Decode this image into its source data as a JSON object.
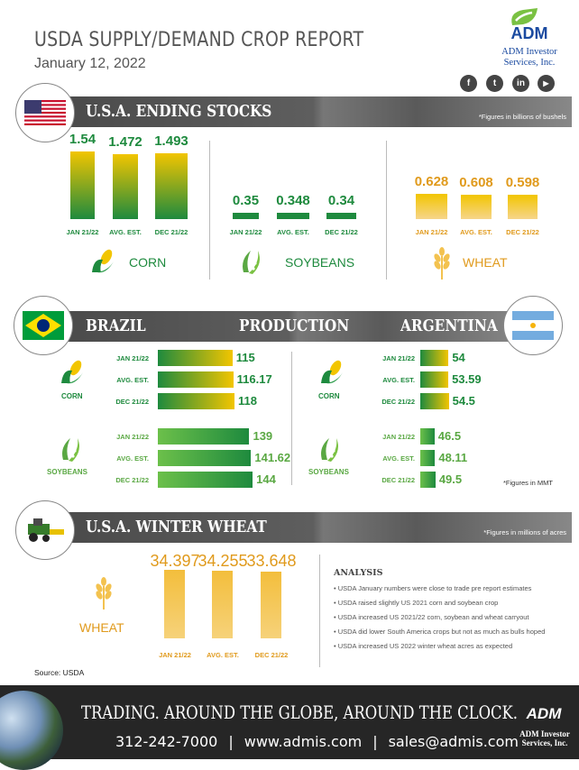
{
  "header": {
    "title": "USDA SUPPLY/DEMAND CROP REPORT",
    "date": "January 12, 2022",
    "brand": {
      "name": "ADM",
      "line1": "ADM Investor",
      "line2": "Services, Inc."
    },
    "social": [
      {
        "icon": "facebook-icon",
        "glyph": "f"
      },
      {
        "icon": "twitter-icon",
        "glyph": "t"
      },
      {
        "icon": "linkedin-icon",
        "glyph": "in"
      },
      {
        "icon": "youtube-icon",
        "glyph": "▶"
      }
    ]
  },
  "colors": {
    "green": "#1e8a3e",
    "yellow": "#f2c500",
    "orange": "#e09a1c",
    "wheat_bar": "#f3c24f"
  },
  "ending_stocks": {
    "title": "U.S.A. ENDING STOCKS",
    "note": "*Figures in billions of bushels",
    "crops": [
      {
        "name": "CORN",
        "labels": [
          "JAN 21/22",
          "AVG. EST.",
          "DEC 21/22"
        ],
        "values": [
          "1.54",
          "1.472",
          "1.493"
        ]
      },
      {
        "name": "SOYBEANS",
        "labels": [
          "JAN 21/22",
          "AVG. EST.",
          "DEC 21/22"
        ],
        "values": [
          "0.35",
          "0.348",
          "0.34"
        ]
      },
      {
        "name": "WHEAT",
        "labels": [
          "JAN 21/22",
          "AVG. EST.",
          "DEC 21/22"
        ],
        "values": [
          "0.628",
          "0.608",
          "0.598"
        ]
      }
    ]
  },
  "production": {
    "left_title": "BRAZIL",
    "center_title": "PRODUCTION",
    "right_title": "ARGENTINA",
    "note": "*Figures in MMT",
    "row_labels": [
      "JAN 21/22",
      "AVG. EST.",
      "DEC 21/22"
    ],
    "brazil": {
      "corn": {
        "name": "CORN",
        "values": [
          "115",
          "116.17",
          "118"
        ]
      },
      "soybeans": {
        "name": "SOYBEANS",
        "values": [
          "139",
          "141.62",
          "144"
        ]
      }
    },
    "argentina": {
      "corn": {
        "name": "CORN",
        "values": [
          "54",
          "53.59",
          "54.5"
        ]
      },
      "soybeans": {
        "name": "SOYBEANS",
        "values": [
          "46.5",
          "48.11",
          "49.5"
        ]
      }
    }
  },
  "winter_wheat": {
    "title": "U.S.A. WINTER WHEAT",
    "note": "*Figures in millions of acres",
    "crop": "WHEAT",
    "labels": [
      "JAN 21/22",
      "AVG. EST.",
      "DEC 21/22"
    ],
    "values": [
      "34.397",
      "34.255",
      "33.648"
    ]
  },
  "analysis": {
    "title": "ANALYSIS",
    "items": [
      "• USDA January numbers were close to trade pre report estimates",
      "• USDA raised slightly US 2021 corn and soybean crop",
      "• USDA increased US 2021/22 corn, soybean and wheat carryout",
      "• USDA did lower South America crops but not as much as bulls hoped",
      "• USDA increased US 2022 winter wheat acres as expected"
    ]
  },
  "source": "Source: USDA",
  "footer": {
    "tagline": "TRADING. AROUND THE GLOBE, AROUND THE CLOCK.",
    "phone": "312-242-7000",
    "sep": "|",
    "website": "www.admis.com",
    "email": "sales@admis.com",
    "brand": "ADM",
    "line1": "ADM Investor",
    "line2": "Services, Inc."
  }
}
